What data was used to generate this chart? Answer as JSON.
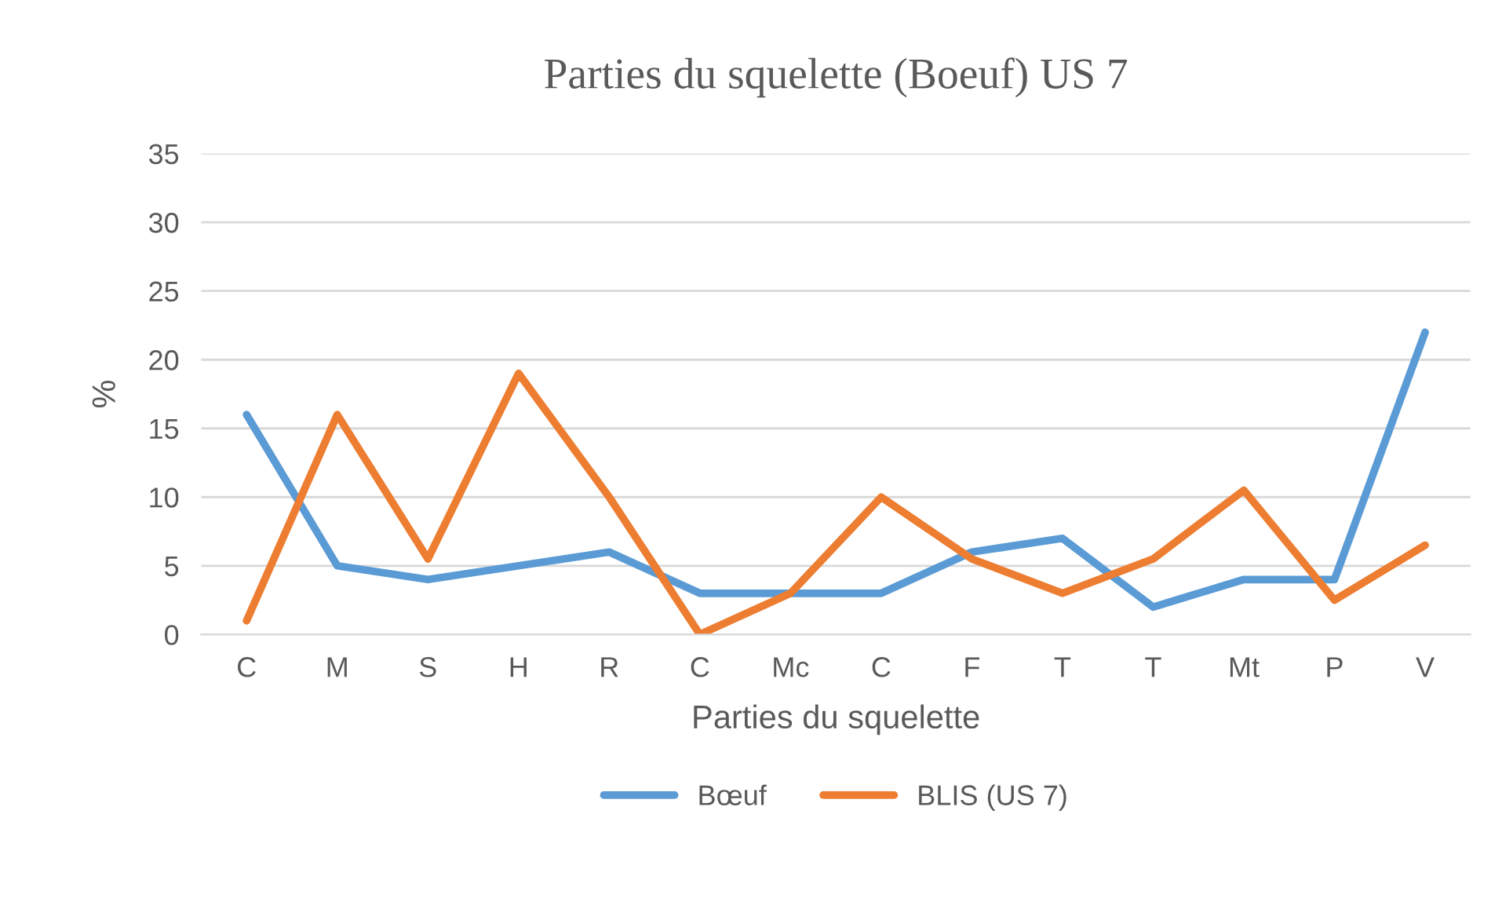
{
  "chart_data": {
    "type": "line",
    "title": "Parties du squelette (Boeuf) US 7",
    "xlabel": "Parties du squelette",
    "ylabel": "%",
    "categories": [
      "C",
      "M",
      "S",
      "H",
      "R",
      "C",
      "Mc",
      "C",
      "F",
      "T",
      "T",
      "Mt",
      "P",
      "V"
    ],
    "series": [
      {
        "name": "Bœuf",
        "color": "#5b9bd5",
        "values": [
          16,
          5,
          4,
          5,
          6,
          3,
          3,
          3,
          6,
          7,
          2,
          4,
          4,
          22
        ]
      },
      {
        "name": "BLIS (US 7)",
        "color": "#ed7d31",
        "values": [
          1,
          16,
          5.5,
          19,
          10,
          0,
          3,
          10,
          5.5,
          3,
          5.5,
          10.5,
          2.5,
          6.5
        ]
      }
    ],
    "ylim": [
      0,
      35
    ],
    "yticks": [
      0,
      5,
      10,
      15,
      20,
      25,
      30,
      35
    ],
    "grid": "y",
    "legend": "bottom",
    "marker": "none",
    "line_style": "solid"
  }
}
